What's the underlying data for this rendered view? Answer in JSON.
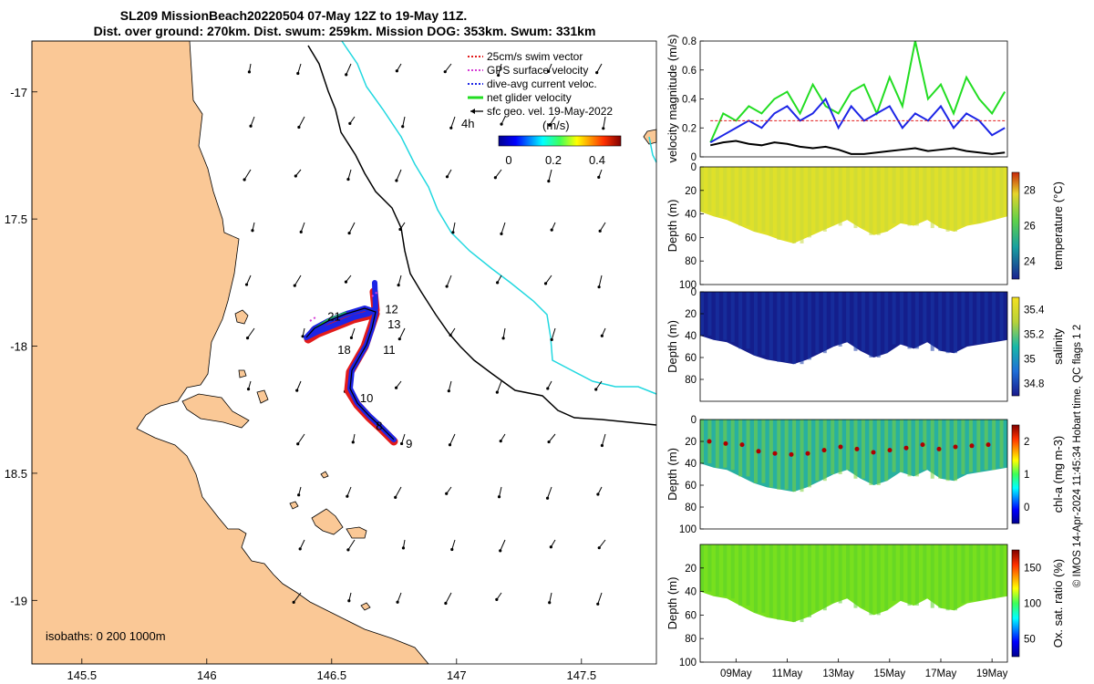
{
  "figure": {
    "title_line1": "SL209 MissionBeach20220504 07-May 12Z to 19-May 11Z.",
    "title_line2": "Dist. over ground: 270km. Dist. swum: 259km. Mission DOG: 353km. Swum: 331km",
    "side_note": "© IMOS 14-Apr-2024 11:45:34 Hobart time. QC flags 1  2"
  },
  "chart_data": [
    {
      "type": "map",
      "xlim": [
        145.3,
        147.8
      ],
      "ylim": [
        -19.25,
        -16.8
      ],
      "x_ticks": [
        145.5,
        146,
        146.5,
        147,
        147.5
      ],
      "x_tick_labels": [
        "145.5",
        "146",
        "146.5",
        "147",
        "147.5"
      ],
      "y_ticks": [
        -17,
        -17.5,
        -18,
        -18.5,
        -19
      ],
      "y_tick_labels": [
        "-17",
        "17.5",
        "-18",
        "18.5",
        "-19"
      ],
      "isobath_label": "isobaths: 0   200  1000m",
      "legend": {
        "items": [
          {
            "label": "25cm/s swim vector",
            "color": "#e21b1b",
            "style": "dotted"
          },
          {
            "label": "GPS surface velocity",
            "color": "#d63bd6",
            "style": "dotted"
          },
          {
            "label": "dive-avg current veloc.",
            "color": "#1c25e6",
            "style": "dotted"
          },
          {
            "label": "net glider velocity",
            "color": "#22dd22",
            "style": "solid"
          },
          {
            "label": "sfc geo. vel. 19-May-2022",
            "color": "#000000",
            "style": "arrow"
          }
        ],
        "time_label": "4h",
        "colorbar_title": "(m/s)",
        "colorbar_ticks": [
          "0",
          "0.2",
          "0.4"
        ]
      },
      "track_labels": [
        {
          "text": "12",
          "lon": 146.74,
          "lat": -17.87
        },
        {
          "text": "13",
          "lon": 146.75,
          "lat": -17.93
        },
        {
          "text": "21",
          "lon": 146.51,
          "lat": -17.9
        },
        {
          "text": "18",
          "lon": 146.55,
          "lat": -18.03
        },
        {
          "text": "11",
          "lon": 146.73,
          "lat": -18.03
        },
        {
          "text": "10",
          "lon": 146.64,
          "lat": -18.22
        },
        {
          "text": "8",
          "lon": 146.69,
          "lat": -18.33
        },
        {
          "text": "9",
          "lon": 146.81,
          "lat": -18.4
        }
      ]
    },
    {
      "type": "line",
      "ylabel": "velocity magnitude (m/s)",
      "ylim": [
        0,
        0.8
      ],
      "y_ticks": [
        "0",
        "0.2",
        "0.4",
        "0.6",
        "0.8"
      ],
      "x_days": [
        8,
        8.5,
        9,
        9.5,
        10,
        10.5,
        11,
        11.5,
        12,
        12.5,
        13,
        13.5,
        14,
        14.5,
        15,
        15.5,
        16,
        16.5,
        17,
        17.5,
        18,
        18.5,
        19,
        19.5
      ],
      "series": [
        {
          "name": "net glider velocity",
          "color": "#22dd22",
          "values": [
            0.1,
            0.3,
            0.25,
            0.35,
            0.3,
            0.4,
            0.45,
            0.3,
            0.5,
            0.35,
            0.3,
            0.45,
            0.5,
            0.3,
            0.55,
            0.35,
            0.8,
            0.4,
            0.5,
            0.3,
            0.55,
            0.4,
            0.3,
            0.45
          ]
        },
        {
          "name": "dive-avg current veloc.",
          "color": "#1c25e6",
          "values": [
            0.1,
            0.15,
            0.2,
            0.25,
            0.2,
            0.3,
            0.35,
            0.25,
            0.3,
            0.4,
            0.2,
            0.35,
            0.25,
            0.3,
            0.35,
            0.2,
            0.3,
            0.25,
            0.35,
            0.2,
            0.3,
            0.25,
            0.15,
            0.2
          ]
        },
        {
          "name": "sfc geo. vel.",
          "color": "#000000",
          "values": [
            0.08,
            0.1,
            0.11,
            0.09,
            0.08,
            0.1,
            0.09,
            0.07,
            0.06,
            0.07,
            0.05,
            0.02,
            0.02,
            0.03,
            0.04,
            0.05,
            0.06,
            0.04,
            0.05,
            0.06,
            0.04,
            0.03,
            0.02,
            0.03
          ]
        },
        {
          "name": "25cm/s swim",
          "color": "#e21b1b",
          "values": [
            0.25,
            0.25,
            0.25,
            0.25,
            0.25,
            0.25,
            0.25,
            0.25,
            0.25,
            0.25,
            0.25,
            0.25,
            0.25,
            0.25,
            0.25,
            0.25,
            0.25,
            0.25,
            0.25,
            0.25,
            0.25,
            0.25,
            0.25,
            0.25
          ]
        }
      ]
    },
    {
      "type": "heatmap",
      "variable": "temperature",
      "ylabel": "Depth (m)",
      "yrange": [
        0,
        100
      ],
      "y_ticks": [
        "0",
        "20",
        "40",
        "60",
        "80",
        "100"
      ],
      "clabel": "temperature (°C)",
      "c_ticks": [
        "24",
        "26",
        "28"
      ],
      "max_depth_profile": [
        38,
        42,
        45,
        50,
        55,
        58,
        62,
        65,
        60,
        55,
        50,
        45,
        52,
        58,
        55,
        48,
        50,
        45,
        52,
        55,
        50,
        48,
        45,
        42
      ]
    },
    {
      "type": "heatmap",
      "variable": "salinity",
      "ylabel": "Depth (m)",
      "yrange": [
        0,
        100
      ],
      "y_ticks": [
        "0",
        "20",
        "40",
        "60",
        "80"
      ],
      "clabel": "salinity",
      "c_ticks": [
        "34.8",
        "35",
        "35.2",
        "35.4"
      ],
      "max_depth_profile": [
        40,
        44,
        46,
        52,
        58,
        62,
        64,
        66,
        62,
        56,
        50,
        46,
        54,
        60,
        56,
        48,
        52,
        46,
        54,
        56,
        50,
        48,
        46,
        44
      ]
    },
    {
      "type": "heatmap",
      "variable": "chl-a",
      "ylabel": "Depth (m)",
      "yrange": [
        0,
        100
      ],
      "y_ticks": [
        "0",
        "20",
        "40",
        "60",
        "80",
        "100"
      ],
      "clabel": "chl-a (mg m-3)",
      "c_ticks": [
        "0",
        "1",
        "2"
      ],
      "max_depth_profile": [
        40,
        44,
        46,
        52,
        58,
        62,
        64,
        66,
        62,
        56,
        50,
        46,
        54,
        60,
        56,
        48,
        52,
        46,
        54,
        56,
        50,
        48,
        46,
        44
      ]
    },
    {
      "type": "heatmap",
      "variable": "oxygen saturation",
      "ylabel": "Depth (m)",
      "yrange": [
        0,
        100
      ],
      "y_ticks": [
        "20",
        "40",
        "60",
        "80",
        "100"
      ],
      "x_tick_labels": [
        "09May",
        "11May",
        "13May",
        "15May",
        "17May",
        "19May"
      ],
      "clabel": "Ox. sat. ratio (%)",
      "c_ticks": [
        "50",
        "100",
        "150"
      ],
      "max_depth_profile": [
        40,
        44,
        46,
        52,
        58,
        62,
        64,
        66,
        62,
        56,
        50,
        46,
        54,
        60,
        56,
        48,
        52,
        46,
        54,
        56,
        50,
        48,
        46,
        44
      ]
    }
  ]
}
